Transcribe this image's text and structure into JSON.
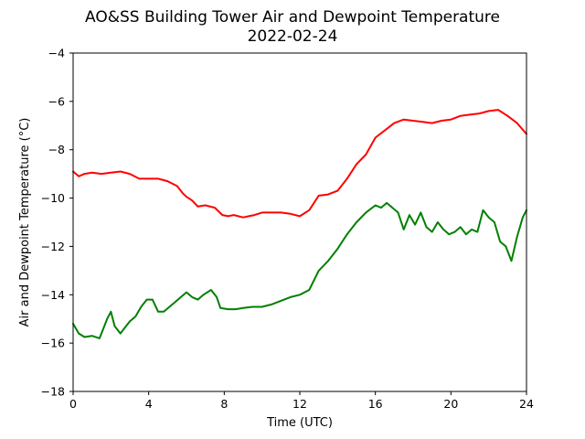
{
  "chart_data": {
    "type": "line",
    "title": "AO&SS Building Tower Air and Dewpoint Temperature",
    "subtitle": "2022-02-24",
    "xlabel": "Time (UTC)",
    "ylabel": "Air and Dewpoint Temperature (°C)",
    "xlim": [
      0,
      24
    ],
    "ylim": [
      -18,
      -4
    ],
    "x_ticks": [
      0,
      4,
      8,
      12,
      16,
      20,
      24
    ],
    "y_ticks": [
      -18,
      -16,
      -14,
      -12,
      -10,
      -8,
      -6,
      -4
    ],
    "grid": false,
    "legend": "none",
    "series": [
      {
        "color": "#ff0000",
        "x": [
          0,
          0.3,
          0.6,
          1.0,
          1.5,
          2.0,
          2.5,
          3.0,
          3.5,
          4.0,
          4.5,
          5.0,
          5.5,
          5.8,
          6.0,
          6.3,
          6.6,
          7.0,
          7.5,
          7.9,
          8.2,
          8.5,
          9.0,
          9.3,
          9.6,
          10.0,
          10.5,
          11.0,
          11.5,
          12.0,
          12.5,
          13.0,
          13.5,
          14.0,
          14.5,
          15.0,
          15.5,
          16.0,
          16.5,
          17.0,
          17.5,
          18.0,
          18.5,
          19.0,
          19.5,
          20.0,
          20.5,
          21.0,
          21.5,
          22.0,
          22.5,
          23.0,
          23.5,
          24.0
        ],
        "y": [
          -8.9,
          -9.1,
          -9.0,
          -8.95,
          -9.0,
          -8.95,
          -8.9,
          -9.0,
          -9.2,
          -9.2,
          -9.2,
          -9.3,
          -9.5,
          -9.8,
          -9.95,
          -10.1,
          -10.35,
          -10.3,
          -10.4,
          -10.7,
          -10.75,
          -10.7,
          -10.8,
          -10.75,
          -10.7,
          -10.6,
          -10.6,
          -10.6,
          -10.65,
          -10.75,
          -10.5,
          -9.9,
          -9.85,
          -9.7,
          -9.2,
          -8.6,
          -8.2,
          -7.5,
          -7.2,
          -6.9,
          -6.75,
          -6.8,
          -6.85,
          -6.9,
          -6.8,
          -6.75,
          -6.6,
          -6.55,
          -6.5,
          -6.4,
          -6.35,
          -6.6,
          -6.9,
          -7.35
        ]
      },
      {
        "color": "#008000",
        "x": [
          0,
          0.3,
          0.6,
          1.0,
          1.4,
          1.6,
          1.8,
          2.0,
          2.2,
          2.5,
          2.8,
          3.0,
          3.3,
          3.6,
          3.9,
          4.2,
          4.5,
          4.8,
          5.1,
          5.4,
          5.7,
          6.0,
          6.3,
          6.6,
          6.9,
          7.3,
          7.6,
          7.8,
          8.2,
          8.6,
          9.0,
          9.5,
          10.0,
          10.5,
          11.0,
          11.5,
          12.0,
          12.5,
          13.0,
          13.5,
          14.0,
          14.5,
          15.0,
          15.5,
          16.0,
          16.3,
          16.6,
          16.9,
          17.2,
          17.5,
          17.8,
          18.1,
          18.4,
          18.7,
          19.0,
          19.3,
          19.6,
          19.9,
          20.2,
          20.5,
          20.8,
          21.1,
          21.4,
          21.7,
          22.0,
          22.3,
          22.6,
          22.9,
          23.2,
          23.5,
          23.8,
          24.0
        ],
        "y": [
          -15.2,
          -15.6,
          -15.75,
          -15.7,
          -15.8,
          -15.4,
          -15.0,
          -14.7,
          -15.3,
          -15.6,
          -15.3,
          -15.1,
          -14.9,
          -14.5,
          -14.2,
          -14.2,
          -14.7,
          -14.7,
          -14.5,
          -14.3,
          -14.1,
          -13.9,
          -14.1,
          -14.2,
          -14.0,
          -13.8,
          -14.1,
          -14.55,
          -14.6,
          -14.6,
          -14.55,
          -14.5,
          -14.5,
          -14.4,
          -14.25,
          -14.1,
          -14.0,
          -13.8,
          -13.0,
          -12.6,
          -12.1,
          -11.5,
          -11.0,
          -10.6,
          -10.3,
          -10.4,
          -10.2,
          -10.4,
          -10.6,
          -11.3,
          -10.7,
          -11.1,
          -10.6,
          -11.2,
          -11.4,
          -11.0,
          -11.3,
          -11.5,
          -11.4,
          -11.2,
          -11.5,
          -11.3,
          -11.4,
          -10.5,
          -10.8,
          -11.0,
          -11.8,
          -12.0,
          -12.6,
          -11.6,
          -10.8,
          -10.5
        ]
      }
    ]
  }
}
